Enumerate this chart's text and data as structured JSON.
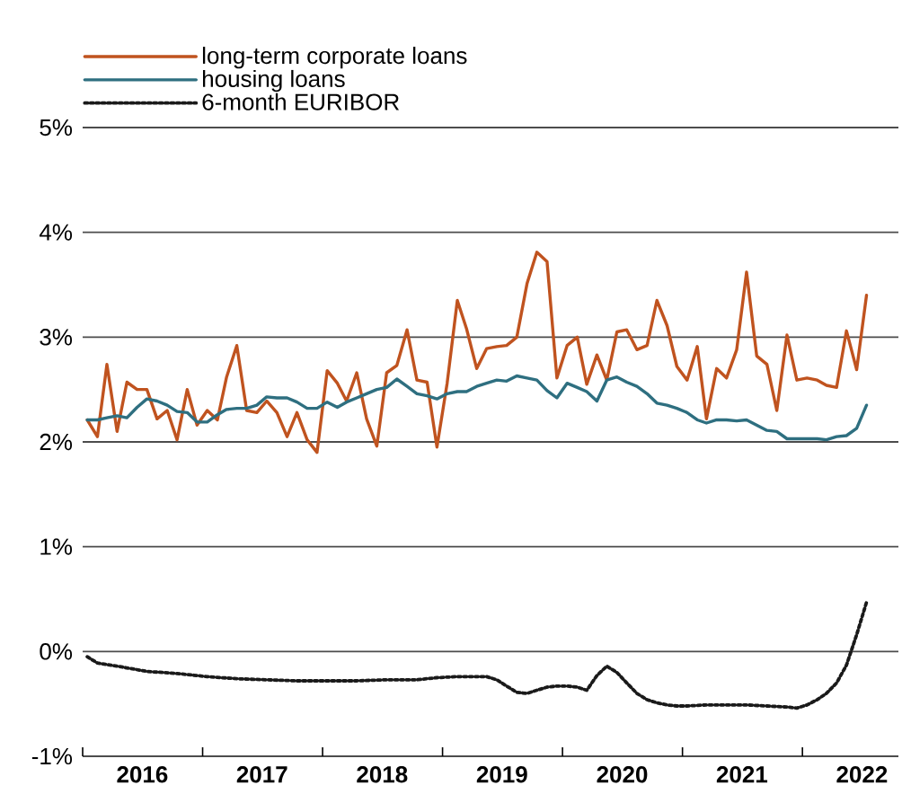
{
  "chart_data": {
    "type": "line",
    "legend": "top left",
    "grid": "y",
    "marker": "none",
    "xlim": [
      "2016-01-01",
      "2022-10-20"
    ],
    "xticks": [
      {
        "value": "2016-01-01",
        "label": null
      },
      {
        "value": "2016-07-01",
        "label": "2016"
      },
      {
        "value": "2017-01-01",
        "label": null
      },
      {
        "value": "2017-07-01",
        "label": "2017"
      },
      {
        "value": "2018-01-01",
        "label": null
      },
      {
        "value": "2018-07-01",
        "label": "2018"
      },
      {
        "value": "2019-01-01",
        "label": null
      },
      {
        "value": "2019-07-01",
        "label": "2019"
      },
      {
        "value": "2020-01-01",
        "label": null
      },
      {
        "value": "2020-07-01",
        "label": "2020"
      },
      {
        "value": "2021-01-01",
        "label": null
      },
      {
        "value": "2021-07-01",
        "label": "2021"
      },
      {
        "value": "2022-01-01",
        "label": null
      },
      {
        "value": "2022-07-01",
        "label": "2022"
      }
    ],
    "ylim": [
      -1,
      5
    ],
    "yticks": [
      {
        "value": -1,
        "label": "-1%"
      },
      {
        "value": 0,
        "label": "0%"
      },
      {
        "value": 1,
        "label": "1%"
      },
      {
        "value": 2,
        "label": "2%"
      },
      {
        "value": 3,
        "label": "3%"
      },
      {
        "value": 4,
        "label": "4%"
      },
      {
        "value": 5,
        "label": "5%"
      }
    ],
    "x": [
      "2016-01-15",
      "2016-02-15",
      "2016-03-15",
      "2016-04-15",
      "2016-05-15",
      "2016-06-15",
      "2016-07-15",
      "2016-08-15",
      "2016-09-15",
      "2016-10-15",
      "2016-11-15",
      "2016-12-15",
      "2017-01-15",
      "2017-02-15",
      "2017-03-15",
      "2017-04-15",
      "2017-05-15",
      "2017-06-15",
      "2017-07-15",
      "2017-08-15",
      "2017-09-15",
      "2017-10-15",
      "2017-11-15",
      "2017-12-15",
      "2018-01-15",
      "2018-02-15",
      "2018-03-15",
      "2018-04-15",
      "2018-05-15",
      "2018-06-15",
      "2018-07-15",
      "2018-08-15",
      "2018-09-15",
      "2018-10-15",
      "2018-11-15",
      "2018-12-15",
      "2019-01-15",
      "2019-02-15",
      "2019-03-15",
      "2019-04-15",
      "2019-05-15",
      "2019-06-15",
      "2019-07-15",
      "2019-08-15",
      "2019-09-15",
      "2019-10-15",
      "2019-11-15",
      "2019-12-15",
      "2020-01-15",
      "2020-02-15",
      "2020-03-15",
      "2020-04-15",
      "2020-05-15",
      "2020-06-15",
      "2020-07-15",
      "2020-08-15",
      "2020-09-15",
      "2020-10-15",
      "2020-11-15",
      "2020-12-15",
      "2021-01-15",
      "2021-02-15",
      "2021-03-15",
      "2021-04-15",
      "2021-05-15",
      "2021-06-15",
      "2021-07-15",
      "2021-08-15",
      "2021-09-15",
      "2021-10-15",
      "2021-11-15",
      "2021-12-15",
      "2022-01-15",
      "2022-02-15",
      "2022-03-15",
      "2022-04-15",
      "2022-05-15",
      "2022-06-15",
      "2022-07-15"
    ],
    "series": [
      {
        "name": "long-term corporate loans",
        "color": "#c0531f",
        "line_style": "solid",
        "values": [
          2.21,
          2.05,
          2.74,
          2.1,
          2.57,
          2.5,
          2.5,
          2.22,
          2.3,
          2.02,
          2.5,
          2.16,
          2.3,
          2.21,
          2.62,
          2.92,
          2.3,
          2.28,
          2.39,
          2.28,
          2.05,
          2.28,
          2.02,
          1.9,
          2.68,
          2.56,
          2.39,
          2.66,
          2.22,
          1.96,
          2.66,
          2.73,
          3.07,
          2.59,
          2.57,
          1.95,
          2.56,
          3.35,
          3.08,
          2.7,
          2.89,
          2.91,
          2.92,
          3.0,
          3.51,
          3.81,
          3.72,
          2.61,
          2.92,
          3.0,
          2.55,
          2.83,
          2.59,
          3.05,
          3.07,
          2.88,
          2.92,
          3.35,
          3.11,
          2.72,
          2.59,
          2.91,
          2.22,
          2.7,
          2.61,
          2.88,
          3.62,
          2.82,
          2.74,
          2.3,
          3.02,
          2.59,
          2.61,
          2.59,
          2.54,
          2.52,
          3.06,
          2.69,
          3.4
        ]
      },
      {
        "name": "housing loans",
        "color": "#2e6f80",
        "line_style": "solid",
        "values": [
          2.21,
          2.21,
          2.23,
          2.25,
          2.23,
          2.33,
          2.41,
          2.39,
          2.35,
          2.29,
          2.28,
          2.19,
          2.19,
          2.26,
          2.31,
          2.32,
          2.32,
          2.35,
          2.43,
          2.42,
          2.42,
          2.38,
          2.32,
          2.32,
          2.38,
          2.33,
          2.38,
          2.42,
          2.46,
          2.5,
          2.52,
          2.6,
          2.53,
          2.46,
          2.44,
          2.41,
          2.46,
          2.48,
          2.48,
          2.53,
          2.56,
          2.59,
          2.58,
          2.63,
          2.61,
          2.59,
          2.49,
          2.42,
          2.56,
          2.52,
          2.48,
          2.39,
          2.59,
          2.62,
          2.57,
          2.53,
          2.46,
          2.37,
          2.35,
          2.32,
          2.28,
          2.21,
          2.18,
          2.21,
          2.21,
          2.2,
          2.21,
          2.16,
          2.11,
          2.1,
          2.03,
          2.03,
          2.03,
          2.03,
          2.02,
          2.05,
          2.06,
          2.13,
          2.35
        ]
      },
      {
        "name": "6-month EURIBOR",
        "color": "#1a1a1a",
        "line_style": "dotted",
        "x": [
          "2016-01-15",
          "2016-02-15",
          "2016-04-15",
          "2016-07-15",
          "2016-10-15",
          "2017-01-15",
          "2017-04-15",
          "2017-07-15",
          "2017-10-15",
          "2018-01-15",
          "2018-04-15",
          "2018-07-15",
          "2018-10-15",
          "2018-12-15",
          "2019-02-15",
          "2019-04-15",
          "2019-05-15",
          "2019-06-15",
          "2019-07-15",
          "2019-08-15",
          "2019-09-15",
          "2019-10-15",
          "2019-11-15",
          "2019-12-15",
          "2020-01-15",
          "2020-02-15",
          "2020-03-15",
          "2020-04-15",
          "2020-05-15",
          "2020-06-15",
          "2020-07-15",
          "2020-08-15",
          "2020-09-15",
          "2020-10-15",
          "2020-11-15",
          "2020-12-15",
          "2021-01-15",
          "2021-03-15",
          "2021-05-15",
          "2021-07-15",
          "2021-09-15",
          "2021-11-15",
          "2021-12-15",
          "2022-01-15",
          "2022-02-15",
          "2022-03-15",
          "2022-04-15",
          "2022-05-15",
          "2022-06-15",
          "2022-07-15"
        ],
        "values": [
          -0.05,
          -0.11,
          -0.14,
          -0.19,
          -0.21,
          -0.24,
          -0.26,
          -0.27,
          -0.28,
          -0.28,
          -0.28,
          -0.27,
          -0.27,
          -0.25,
          -0.24,
          -0.24,
          -0.24,
          -0.27,
          -0.33,
          -0.39,
          -0.4,
          -0.37,
          -0.34,
          -0.33,
          -0.33,
          -0.34,
          -0.37,
          -0.23,
          -0.14,
          -0.2,
          -0.3,
          -0.4,
          -0.46,
          -0.49,
          -0.51,
          -0.52,
          -0.52,
          -0.51,
          -0.51,
          -0.51,
          -0.52,
          -0.53,
          -0.54,
          -0.51,
          -0.46,
          -0.4,
          -0.3,
          -0.13,
          0.16,
          0.47
        ]
      }
    ]
  }
}
